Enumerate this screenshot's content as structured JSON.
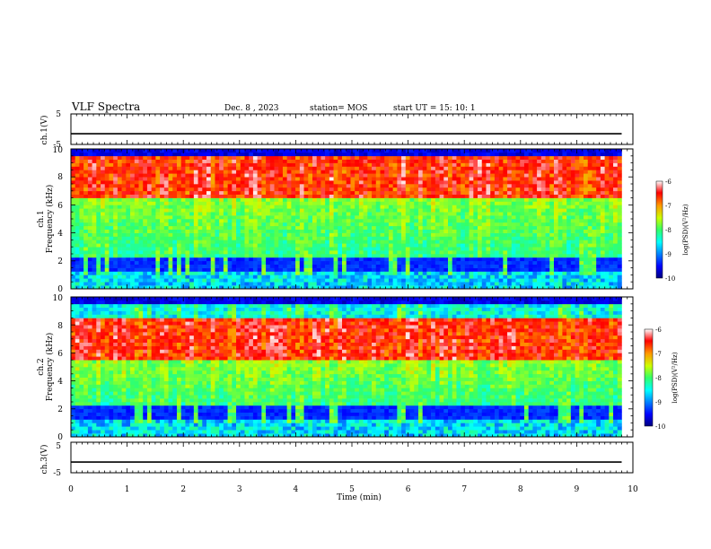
{
  "header": {
    "title": "VLF Spectra",
    "date": "Dec. 8 , 2023",
    "station": "station= MOS",
    "start": "start UT = 15: 10: 1"
  },
  "chart_data": [
    {
      "type": "line",
      "panel": "ch1-waveform",
      "ylabel": "ch.1(V)",
      "ylim": [
        -5,
        5
      ],
      "yticks": [
        "5",
        "-5"
      ],
      "xlim": [
        0,
        10
      ],
      "series": [
        {
          "x": [
            0,
            9.8
          ],
          "values": [
            -1.5,
            -1.5
          ]
        }
      ]
    },
    {
      "type": "heatmap",
      "panel": "ch1-spectrogram",
      "ylabel": "ch.1 Frequency (kHz)",
      "ylabel_line1": "ch.1",
      "ylabel_line2": "Frequency (kHz)",
      "ylim": [
        0,
        10
      ],
      "yticks": [
        "0",
        "2",
        "4",
        "6",
        "8",
        "10"
      ],
      "xlim": [
        0,
        10
      ],
      "colorbar": {
        "label": "log(PSD)(V²/Hz)",
        "range": [
          -10,
          -6
        ],
        "ticks": [
          "-6",
          "-7",
          "-8",
          "-9",
          "-10"
        ]
      },
      "hot_band_khz": [
        6.5,
        9.5
      ],
      "seed": 11
    },
    {
      "type": "heatmap",
      "panel": "ch2-spectrogram",
      "ylabel": "ch.2 Frequency (kHz)",
      "ylabel_line1": "ch.2",
      "ylabel_line2": "Frequency (kHz)",
      "ylim": [
        0,
        10
      ],
      "yticks": [
        "0",
        "2",
        "4",
        "6",
        "8",
        "10"
      ],
      "xlim": [
        0,
        10
      ],
      "colorbar": {
        "label": "log(PSD)(V²/Hz)",
        "range": [
          -10,
          -6
        ],
        "ticks": [
          "-6",
          "-7",
          "-8",
          "-9",
          "-10"
        ]
      },
      "hot_band_khz": [
        5.5,
        8.5
      ],
      "seed": 29
    },
    {
      "type": "line",
      "panel": "ch3-waveform",
      "ylabel": "ch.3(V)",
      "ylim": [
        -5,
        5
      ],
      "yticks": [
        "5",
        "-5"
      ],
      "xlim": [
        0,
        10
      ],
      "xlabel": "Time (min)",
      "xticks": [
        "0",
        "1",
        "2",
        "3",
        "4",
        "5",
        "6",
        "7",
        "8",
        "9",
        "10"
      ],
      "series": [
        {
          "x": [
            0,
            9.8
          ],
          "values": [
            -1.5,
            -1.5
          ]
        }
      ]
    }
  ]
}
